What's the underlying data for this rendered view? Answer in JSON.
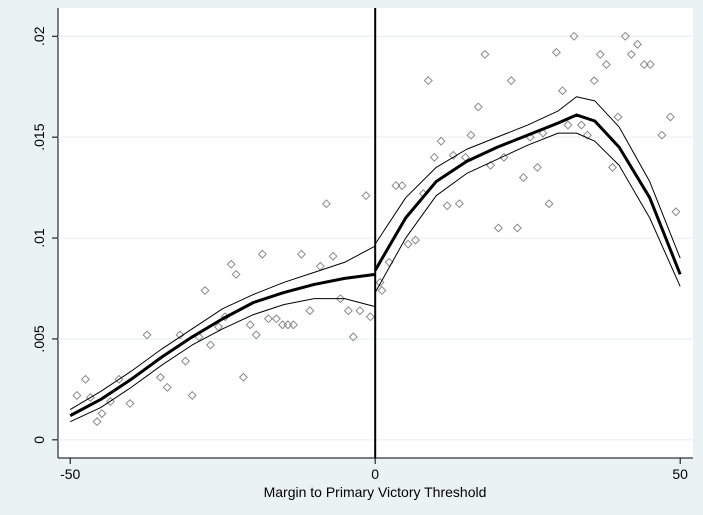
{
  "chart_data": {
    "type": "scatter",
    "xlabel": "Margin to Primary Victory Threshold",
    "xlim": [
      -52,
      52.1
    ],
    "ylim": [
      -0.0009,
      0.0214
    ],
    "xticks": [
      -50,
      0,
      50
    ],
    "yticks": [
      0,
      {
        "value": 0.005,
        "label": ".005"
      },
      {
        "value": 0.01,
        "label": ".01"
      },
      {
        "value": 0.015,
        "label": ".015"
      },
      {
        "value": 0.02,
        "label": ".02"
      }
    ],
    "grid": true,
    "xline": 0,
    "series": [
      {
        "type": "scatter",
        "color": "#8a8a8a",
        "x": [
          -48.9,
          -47.5,
          -46.7,
          -45.6,
          -44.8,
          -43.4,
          -42.0,
          -40.2,
          -37.4,
          -35.2,
          -34.1,
          -32.0,
          -31.1,
          -30.0,
          -28.9,
          -27.9,
          -27.0,
          -25.7,
          -24.6,
          -23.6,
          -22.8,
          -21.6,
          -20.5,
          -19.5,
          -18.5,
          -17.5,
          -16.2,
          -15.2,
          -14.3,
          -13.4,
          -12.1,
          -10.7,
          -9.0,
          -8.0,
          -6.9,
          -5.7,
          -4.4,
          -3.6,
          -2.5,
          -1.5,
          -0.8,
          0.8,
          1.1,
          2.3,
          3.4,
          4.4,
          5.4,
          6.6,
          7.9,
          8.7,
          9.7,
          10.8,
          11.8,
          12.8,
          13.8,
          14.8,
          15.7,
          16.9,
          18.0,
          18.9,
          20.2,
          21.1,
          22.3,
          23.3,
          24.3,
          25.4,
          26.6,
          27.5,
          28.5,
          29.7,
          30.7,
          31.6,
          32.6,
          33.8,
          34.8,
          35.9,
          36.9,
          37.9,
          38.9,
          39.8,
          41.0,
          42.0,
          43.0,
          44.1,
          45.1,
          47.0,
          48.4,
          49.3
        ],
        "values": [
          0.0022,
          0.003,
          0.0021,
          0.0009,
          0.0013,
          0.0019,
          0.003,
          0.0018,
          0.0052,
          0.0031,
          0.0026,
          0.0052,
          0.0039,
          0.0022,
          0.0051,
          0.0074,
          0.0047,
          0.0056,
          0.0061,
          0.0087,
          0.0082,
          0.0031,
          0.0057,
          0.0052,
          0.0092,
          0.006,
          0.006,
          0.0057,
          0.0057,
          0.0057,
          0.0092,
          0.0064,
          0.0086,
          0.0117,
          0.0091,
          0.007,
          0.0064,
          0.0051,
          0.0064,
          0.0121,
          0.0061,
          0.0078,
          0.0074,
          0.0088,
          0.0126,
          0.0126,
          0.0097,
          0.0099,
          0.0122,
          0.0178,
          0.014,
          0.0148,
          0.0116,
          0.0141,
          0.0117,
          0.014,
          0.0151,
          0.0165,
          0.0191,
          0.0136,
          0.0105,
          0.014,
          0.0178,
          0.0105,
          0.013,
          0.015,
          0.0135,
          0.0152,
          0.0117,
          0.0192,
          0.0173,
          0.0156,
          0.02,
          0.0156,
          0.0151,
          0.0178,
          0.0191,
          0.0186,
          0.0135,
          0.016,
          0.02,
          0.0191,
          0.0196,
          0.0186,
          0.0186,
          0.0151,
          0.016,
          0.0113
        ]
      },
      {
        "type": "line",
        "color": "#000000",
        "width": 1,
        "x": [
          -50,
          -45,
          -40,
          -35,
          -30,
          -25,
          -20,
          -15,
          -10,
          -5,
          0
        ],
        "values": [
          0.0015,
          0.0024,
          0.0034,
          0.0045,
          0.0055,
          0.0065,
          0.0072,
          0.0078,
          0.0083,
          0.0088,
          0.0096
        ]
      },
      {
        "type": "line",
        "color": "#000000",
        "width": 3,
        "x": [
          -50,
          -45,
          -40,
          -35,
          -30,
          -25,
          -20,
          -15,
          -10,
          -5,
          0
        ],
        "values": [
          0.0012,
          0.002,
          0.003,
          0.0041,
          0.0051,
          0.006,
          0.0068,
          0.0073,
          0.0077,
          0.008,
          0.0082
        ]
      },
      {
        "type": "line",
        "color": "#000000",
        "width": 1,
        "x": [
          -50,
          -45,
          -40,
          -35,
          -30,
          -25,
          -20,
          -15,
          -10,
          -5,
          0
        ],
        "values": [
          0.0009,
          0.0016,
          0.0026,
          0.0037,
          0.0047,
          0.0055,
          0.0062,
          0.0067,
          0.007,
          0.007,
          0.0066
        ]
      },
      {
        "type": "line",
        "color": "#000000",
        "width": 1,
        "x": [
          0,
          5,
          10,
          15,
          20,
          25,
          30,
          33,
          36,
          40,
          45,
          50
        ],
        "values": [
          0.0097,
          0.012,
          0.0135,
          0.0144,
          0.015,
          0.0156,
          0.0163,
          0.017,
          0.0168,
          0.0155,
          0.0128,
          0.009
        ]
      },
      {
        "type": "line",
        "color": "#000000",
        "width": 3,
        "x": [
          0,
          5,
          10,
          15,
          20,
          25,
          30,
          33,
          36,
          40,
          45,
          50
        ],
        "values": [
          0.0084,
          0.011,
          0.0128,
          0.0138,
          0.0145,
          0.0151,
          0.0157,
          0.0161,
          0.0158,
          0.0145,
          0.012,
          0.0082
        ]
      },
      {
        "type": "line",
        "color": "#000000",
        "width": 1,
        "x": [
          0,
          5,
          10,
          15,
          20,
          25,
          30,
          33,
          36,
          40,
          45,
          50
        ],
        "values": [
          0.0073,
          0.01,
          0.0121,
          0.0132,
          0.0139,
          0.0146,
          0.0152,
          0.0152,
          0.0148,
          0.0136,
          0.011,
          0.0076
        ]
      }
    ]
  }
}
